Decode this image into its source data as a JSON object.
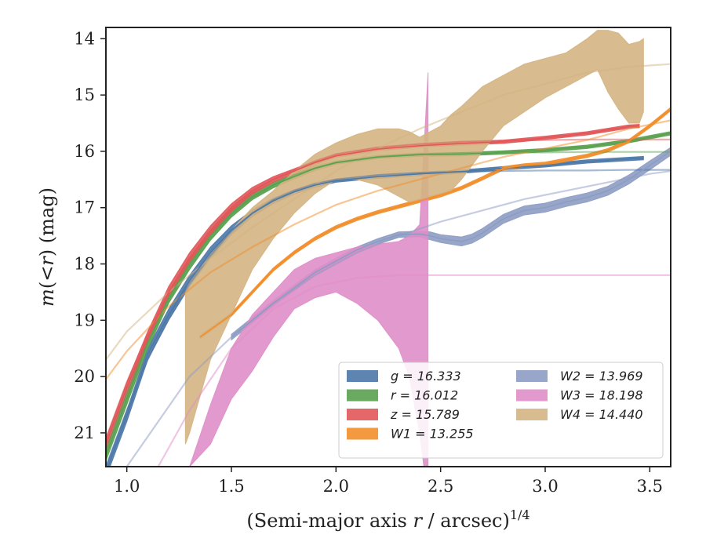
{
  "chart_data": {
    "type": "line",
    "xlabel": "(Semi-major axis r / arcsec)^{1/4}",
    "ylabel": "m(<r) (mag)",
    "xlim": [
      0.9,
      3.6
    ],
    "ylim": [
      21.6,
      13.8
    ],
    "y_inverted": true,
    "x_ticks": [
      "1.0",
      "1.5",
      "2.0",
      "2.5",
      "3.0",
      "3.5"
    ],
    "y_ticks": [
      "14",
      "15",
      "16",
      "17",
      "18",
      "19",
      "20",
      "21"
    ],
    "grid": false,
    "legend_position": "lower-right",
    "legend_columns": 2,
    "legend": [
      "g = 16.333",
      "r = 16.012",
      "z = 15.789",
      "W1 = 13.255",
      "W2 = 13.969",
      "W3 = 18.198",
      "W4 = 14.440"
    ],
    "series": [
      {
        "name": "g = 16.333",
        "color": "#4c78a8",
        "style": "band",
        "x": [
          0.9,
          1.0,
          1.1,
          1.2,
          1.3,
          1.4,
          1.5,
          1.6,
          1.7,
          1.8,
          1.9,
          2.0,
          2.2,
          2.4,
          2.6,
          2.8,
          3.0,
          3.2,
          3.47
        ],
        "y": [
          21.7,
          20.7,
          19.6,
          18.9,
          18.3,
          17.8,
          17.4,
          17.1,
          16.88,
          16.72,
          16.6,
          16.52,
          16.45,
          16.4,
          16.36,
          16.3,
          16.25,
          16.18,
          16.12
        ]
      },
      {
        "name": "r = 16.012",
        "color": "#59a14f",
        "style": "band",
        "x": [
          0.9,
          1.0,
          1.1,
          1.2,
          1.3,
          1.4,
          1.5,
          1.6,
          1.7,
          1.8,
          1.9,
          2.0,
          2.2,
          2.4,
          2.6,
          2.8,
          3.0,
          3.2,
          3.4,
          3.6
        ],
        "y": [
          21.4,
          20.4,
          19.4,
          18.6,
          18.0,
          17.5,
          17.1,
          16.8,
          16.6,
          16.45,
          16.3,
          16.2,
          16.1,
          16.06,
          16.05,
          16.02,
          15.98,
          15.92,
          15.82,
          15.68
        ]
      },
      {
        "name": "z = 15.789",
        "color": "#e15759",
        "style": "band",
        "x": [
          0.9,
          1.0,
          1.1,
          1.2,
          1.3,
          1.4,
          1.5,
          1.6,
          1.7,
          1.8,
          1.9,
          2.0,
          2.2,
          2.4,
          2.6,
          2.8,
          3.0,
          3.2,
          3.4,
          3.45
        ],
        "y": [
          21.2,
          20.2,
          19.3,
          18.5,
          17.9,
          17.4,
          17.0,
          16.7,
          16.5,
          16.35,
          16.2,
          16.08,
          15.96,
          15.9,
          15.86,
          15.83,
          15.76,
          15.68,
          15.56,
          15.55
        ]
      },
      {
        "name": "W1 = 13.255",
        "color": "#f28e2b",
        "style": "band",
        "x": [
          1.35,
          1.5,
          1.6,
          1.7,
          1.8,
          1.9,
          2.0,
          2.1,
          2.2,
          2.3,
          2.4,
          2.5,
          2.6,
          2.7,
          2.8,
          2.9,
          3.0,
          3.1,
          3.2,
          3.3,
          3.4,
          3.5,
          3.6
        ],
        "y": [
          19.3,
          18.9,
          18.5,
          18.1,
          17.8,
          17.55,
          17.35,
          17.2,
          17.08,
          16.98,
          16.88,
          16.78,
          16.65,
          16.48,
          16.3,
          16.25,
          16.22,
          16.15,
          16.08,
          15.98,
          15.82,
          15.55,
          15.25
        ]
      },
      {
        "name": "W2 = 13.969",
        "color": "#8d9cc3",
        "style": "band",
        "x": [
          1.5,
          1.7,
          1.9,
          2.0,
          2.1,
          2.2,
          2.3,
          2.4,
          2.45,
          2.5,
          2.6,
          2.65,
          2.7,
          2.8,
          2.9,
          3.0,
          3.1,
          3.2,
          3.3,
          3.4,
          3.5,
          3.6
        ],
        "y": [
          19.3,
          18.7,
          18.15,
          17.95,
          17.75,
          17.6,
          17.48,
          17.47,
          17.5,
          17.55,
          17.6,
          17.55,
          17.45,
          17.2,
          17.05,
          17.0,
          16.9,
          16.82,
          16.7,
          16.5,
          16.25,
          16.0
        ]
      },
      {
        "name": "W3 = 18.198",
        "color": "#df8ec8",
        "style": "band",
        "x": [
          1.3,
          1.4,
          1.5,
          1.6,
          1.7,
          1.8,
          1.9,
          2.0,
          2.1,
          2.2,
          2.3,
          2.4,
          2.44
        ],
        "y": [
          21.5,
          20.8,
          20.1,
          19.5,
          19.0,
          18.5,
          18.1,
          17.9,
          17.75,
          17.7,
          17.72,
          17.6,
          17.55
        ]
      },
      {
        "name": "W4 = 14.440",
        "color": "#d4b482",
        "style": "band",
        "x": [
          1.28,
          1.4,
          1.5,
          1.6,
          1.7,
          1.8,
          1.9,
          2.0,
          2.1,
          2.2,
          2.3,
          2.4,
          2.5,
          2.6,
          2.7,
          2.8,
          2.9,
          3.0,
          3.1,
          3.2,
          3.3,
          3.4,
          3.47
        ],
        "y": [
          19.0,
          18.2,
          17.8,
          17.4,
          17.1,
          16.8,
          16.5,
          16.2,
          16.0,
          15.95,
          16.05,
          16.3,
          16.15,
          15.85,
          15.55,
          15.1,
          14.85,
          14.7,
          14.55,
          14.35,
          14.55,
          15.05,
          15.1
        ]
      }
    ],
    "bands": [
      {
        "series": "g = 16.333",
        "x": [
          0.9,
          1.0,
          1.1,
          1.2,
          1.3,
          1.4,
          1.5,
          1.6,
          1.7,
          1.8,
          1.9,
          2.0,
          2.2,
          2.4,
          2.6,
          2.8,
          3.0,
          3.2,
          3.47
        ],
        "y_low": [
          21.8,
          20.8,
          19.7,
          19.0,
          18.4,
          17.9,
          17.48,
          17.16,
          16.93,
          16.76,
          16.64,
          16.55,
          16.48,
          16.43,
          16.39,
          16.33,
          16.28,
          16.21,
          16.15
        ],
        "y_high": [
          21.6,
          20.6,
          19.5,
          18.8,
          18.2,
          17.7,
          17.32,
          17.04,
          16.83,
          16.68,
          16.56,
          16.49,
          16.42,
          16.37,
          16.33,
          16.27,
          16.22,
          16.15,
          16.09
        ]
      },
      {
        "series": "r = 16.012",
        "x": [
          0.9,
          1.0,
          1.1,
          1.2,
          1.3,
          1.4,
          1.5,
          1.6,
          1.7,
          1.8,
          1.9,
          2.0,
          2.2,
          2.4,
          2.6,
          2.8,
          3.0,
          3.2,
          3.4,
          3.6
        ],
        "y_low": [
          21.5,
          20.5,
          19.5,
          18.7,
          18.1,
          17.58,
          17.17,
          16.86,
          16.65,
          16.49,
          16.34,
          16.23,
          16.13,
          16.09,
          16.08,
          16.05,
          16.01,
          15.95,
          15.85,
          15.71
        ],
        "y_high": [
          21.3,
          20.3,
          19.3,
          18.5,
          17.9,
          17.42,
          17.03,
          16.74,
          16.55,
          16.41,
          16.26,
          16.17,
          16.07,
          16.03,
          16.02,
          15.99,
          15.95,
          15.89,
          15.79,
          15.65
        ]
      },
      {
        "series": "z = 15.789",
        "x": [
          0.9,
          1.0,
          1.1,
          1.2,
          1.3,
          1.4,
          1.5,
          1.6,
          1.7,
          1.8,
          1.9,
          2.0,
          2.2,
          2.4,
          2.6,
          2.8,
          3.0,
          3.2,
          3.4,
          3.45
        ],
        "y_low": [
          21.3,
          20.3,
          19.4,
          18.6,
          18.0,
          17.48,
          17.07,
          16.76,
          16.55,
          16.39,
          16.24,
          16.11,
          15.99,
          15.93,
          15.89,
          15.86,
          15.79,
          15.71,
          15.59,
          15.58
        ],
        "y_high": [
          21.1,
          20.1,
          19.2,
          18.4,
          17.8,
          17.32,
          16.93,
          16.64,
          16.45,
          16.31,
          16.16,
          16.05,
          15.93,
          15.87,
          15.83,
          15.8,
          15.73,
          15.65,
          15.53,
          15.52
        ]
      },
      {
        "series": "W1 = 13.255",
        "x": [
          1.35,
          1.5,
          1.6,
          1.7,
          1.8,
          1.9,
          2.0,
          2.1,
          2.2,
          2.3,
          2.4,
          2.5,
          2.6,
          2.7,
          2.8,
          2.9,
          3.0,
          3.1,
          3.2,
          3.3,
          3.4,
          3.5,
          3.6
        ],
        "y_low": [
          19.33,
          18.93,
          18.53,
          18.13,
          17.83,
          17.58,
          17.38,
          17.23,
          17.11,
          17.01,
          16.91,
          16.81,
          16.68,
          16.51,
          16.33,
          16.28,
          16.25,
          16.18,
          16.11,
          16.01,
          15.85,
          15.58,
          15.28
        ],
        "y_high": [
          19.27,
          18.87,
          18.47,
          18.07,
          17.77,
          17.52,
          17.32,
          17.17,
          17.05,
          16.95,
          16.85,
          16.75,
          16.62,
          16.45,
          16.27,
          16.22,
          16.19,
          16.12,
          16.05,
          15.95,
          15.79,
          15.52,
          15.22
        ]
      },
      {
        "series": "W2 = 13.969",
        "x": [
          1.5,
          1.7,
          1.9,
          2.0,
          2.1,
          2.2,
          2.3,
          2.4,
          2.45,
          2.5,
          2.6,
          2.65,
          2.7,
          2.8,
          2.9,
          3.0,
          3.1,
          3.2,
          3.3,
          3.4,
          3.5,
          3.6
        ],
        "y_low": [
          19.35,
          18.75,
          18.2,
          18.0,
          17.8,
          17.65,
          17.53,
          17.52,
          17.57,
          17.62,
          17.68,
          17.63,
          17.53,
          17.28,
          17.13,
          17.08,
          16.98,
          16.9,
          16.78,
          16.58,
          16.33,
          16.07
        ],
        "y_high": [
          19.25,
          18.65,
          18.1,
          17.9,
          17.7,
          17.55,
          17.43,
          17.42,
          17.43,
          17.48,
          17.52,
          17.47,
          17.37,
          17.12,
          16.97,
          16.92,
          16.82,
          16.74,
          16.62,
          16.42,
          16.17,
          15.93
        ]
      },
      {
        "series": "W3 = 18.198",
        "x": [
          1.3,
          1.4,
          1.5,
          1.6,
          1.7,
          1.8,
          1.9,
          2.0,
          2.1,
          2.2,
          2.3,
          2.35,
          2.4,
          2.42,
          2.44
        ],
        "y_low": [
          21.6,
          21.2,
          20.4,
          19.9,
          19.3,
          18.8,
          18.6,
          18.5,
          18.7,
          19.0,
          19.5,
          20.0,
          21.0,
          21.6,
          21.6
        ],
        "y_high": [
          21.6,
          20.5,
          19.5,
          18.9,
          18.5,
          18.1,
          17.9,
          17.8,
          17.7,
          17.65,
          17.6,
          17.5,
          17.3,
          16.0,
          14.6
        ]
      },
      {
        "series": "W4 = 14.440",
        "x": [
          1.28,
          1.3,
          1.4,
          1.5,
          1.6,
          1.7,
          1.8,
          1.9,
          2.0,
          2.1,
          2.2,
          2.3,
          2.35,
          2.4,
          2.5,
          2.55,
          2.6,
          2.7,
          2.8,
          2.9,
          3.0,
          3.1,
          3.2,
          3.25,
          3.3,
          3.35,
          3.4,
          3.45,
          3.47
        ],
        "y_low": [
          21.2,
          21.0,
          19.7,
          18.9,
          18.1,
          17.55,
          17.1,
          16.75,
          16.5,
          16.5,
          16.6,
          16.8,
          16.9,
          16.85,
          16.75,
          16.7,
          16.5,
          16.0,
          15.55,
          15.3,
          15.05,
          14.85,
          14.65,
          14.55,
          14.95,
          15.25,
          15.5,
          15.5,
          15.3
        ],
        "y_high": [
          18.5,
          18.3,
          17.8,
          17.4,
          17.0,
          16.7,
          16.35,
          16.05,
          15.85,
          15.7,
          15.6,
          15.6,
          15.65,
          15.75,
          15.55,
          15.35,
          15.2,
          14.85,
          14.65,
          14.45,
          14.35,
          14.25,
          14.0,
          13.85,
          13.85,
          13.9,
          14.1,
          14.05,
          14.0
        ]
      },
      {
        "series": "W3 = 18.198",
        "x": [
          2.44,
          3.6
        ],
        "y_low": [
          18.2,
          18.2
        ],
        "y_high": [
          18.2,
          18.2
        ]
      }
    ],
    "model_curves": [
      {
        "series": "g = 16.333",
        "x": [
          0.9,
          1.0,
          1.1,
          1.2,
          1.3,
          1.4,
          1.5,
          1.6,
          1.7,
          1.8,
          1.9,
          2.0,
          2.2,
          2.4,
          2.6,
          2.8,
          3.0,
          3.2,
          3.4,
          3.6
        ],
        "y": [
          21.6,
          20.6,
          19.7,
          18.95,
          18.35,
          17.85,
          17.42,
          17.1,
          16.86,
          16.7,
          16.58,
          16.5,
          16.42,
          16.38,
          16.36,
          16.35,
          16.34,
          16.34,
          16.33,
          16.33
        ]
      },
      {
        "series": "r = 16.012",
        "x": [
          0.9,
          1.0,
          1.1,
          1.2,
          1.3,
          1.4,
          1.5,
          1.6,
          1.7,
          1.8,
          1.9,
          2.0,
          2.2,
          2.4,
          2.6,
          2.8,
          3.0,
          3.2,
          3.4,
          3.6
        ],
        "y": [
          21.3,
          20.3,
          19.4,
          18.65,
          18.05,
          17.55,
          17.13,
          16.82,
          16.6,
          16.42,
          16.3,
          16.2,
          16.1,
          16.05,
          16.03,
          16.02,
          16.02,
          16.01,
          16.01,
          16.01
        ]
      },
      {
        "series": "z = 15.789",
        "x": [
          0.9,
          1.0,
          1.1,
          1.2,
          1.3,
          1.4,
          1.5,
          1.6,
          1.7,
          1.8,
          1.9,
          2.0,
          2.2,
          2.4,
          2.6,
          2.8,
          3.0,
          3.2,
          3.4,
          3.6
        ],
        "y": [
          21.1,
          20.1,
          19.25,
          18.5,
          17.9,
          17.42,
          17.02,
          16.72,
          16.5,
          16.33,
          16.18,
          16.05,
          15.93,
          15.87,
          15.83,
          15.81,
          15.8,
          15.79,
          15.79,
          15.79
        ]
      },
      {
        "series": "W1 = 13.255",
        "x": [
          0.9,
          1.0,
          1.2,
          1.4,
          1.6,
          1.8,
          2.0,
          2.2,
          2.4,
          2.6,
          2.8,
          3.0,
          3.2,
          3.4,
          3.6
        ],
        "y": [
          20.05,
          19.55,
          18.75,
          18.15,
          17.7,
          17.3,
          16.95,
          16.7,
          16.5,
          16.3,
          16.1,
          15.95,
          15.8,
          15.6,
          15.45
        ]
      },
      {
        "series": "W2 = 13.969",
        "x": [
          1.0,
          1.15,
          1.3,
          1.5,
          1.7,
          1.9,
          2.1,
          2.3,
          2.5,
          2.7,
          2.9,
          3.1,
          3.3,
          3.5,
          3.6
        ],
        "y": [
          21.6,
          20.8,
          20.0,
          19.3,
          18.7,
          18.2,
          17.8,
          17.5,
          17.25,
          17.05,
          16.85,
          16.7,
          16.55,
          16.4,
          16.35
        ]
      },
      {
        "series": "W3 = 18.198",
        "x": [
          1.15,
          1.3,
          1.5,
          1.7,
          1.9,
          2.1,
          2.3,
          2.44
        ],
        "y": [
          21.6,
          20.6,
          19.5,
          18.8,
          18.4,
          18.25,
          18.2,
          18.2
        ]
      },
      {
        "series": "W4 = 14.440",
        "x": [
          0.9,
          1.0,
          1.2,
          1.4,
          1.6,
          1.8,
          2.0,
          2.2,
          2.4,
          2.6,
          2.8,
          3.0,
          3.2,
          3.4,
          3.6
        ],
        "y": [
          19.7,
          19.2,
          18.5,
          17.9,
          17.35,
          16.85,
          16.35,
          15.95,
          15.6,
          15.3,
          15.0,
          14.8,
          14.6,
          14.5,
          14.45
        ]
      }
    ]
  }
}
